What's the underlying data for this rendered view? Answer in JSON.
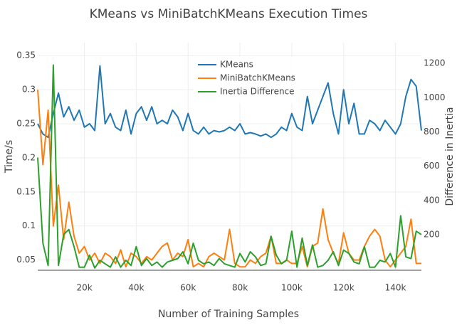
{
  "chart_data": {
    "type": "line",
    "title": "KMeans vs MiniBatchKMeans Execution Times",
    "x_label": "Number of Training Samples",
    "y_label": "Time/s",
    "y2_label": "Difference in Inertia",
    "x": [
      2000,
      4000,
      6000,
      8000,
      10000,
      12000,
      14000,
      16000,
      18000,
      20000,
      22000,
      24000,
      26000,
      28000,
      30000,
      32000,
      34000,
      36000,
      38000,
      40000,
      42000,
      44000,
      46000,
      48000,
      50000,
      52000,
      54000,
      56000,
      58000,
      60000,
      62000,
      64000,
      66000,
      68000,
      70000,
      72000,
      74000,
      76000,
      78000,
      80000,
      82000,
      84000,
      86000,
      88000,
      90000,
      92000,
      94000,
      96000,
      98000,
      100000,
      102000,
      104000,
      106000,
      108000,
      110000,
      112000,
      114000,
      116000,
      118000,
      120000,
      122000,
      124000,
      126000,
      128000,
      130000,
      132000,
      134000,
      136000,
      138000,
      140000,
      142000,
      144000,
      146000,
      148000,
      150000
    ],
    "series": [
      {
        "name": "KMeans",
        "color": "#1f77b4",
        "values": [
          0.25,
          0.235,
          0.23,
          0.265,
          0.295,
          0.26,
          0.275,
          0.255,
          0.27,
          0.245,
          0.25,
          0.24,
          0.335,
          0.25,
          0.265,
          0.245,
          0.24,
          0.27,
          0.235,
          0.265,
          0.275,
          0.255,
          0.275,
          0.25,
          0.255,
          0.25,
          0.27,
          0.26,
          0.24,
          0.265,
          0.24,
          0.235,
          0.245,
          0.235,
          0.24,
          0.238,
          0.24,
          0.245,
          0.24,
          0.25,
          0.235,
          0.237,
          0.235,
          0.232,
          0.235,
          0.23,
          0.235,
          0.245,
          0.24,
          0.265,
          0.245,
          0.24,
          0.29,
          0.25,
          0.27,
          0.29,
          0.31,
          0.265,
          0.235,
          0.3,
          0.25,
          0.28,
          0.235,
          0.235,
          0.255,
          0.25,
          0.24,
          0.255,
          0.245,
          0.235,
          0.25,
          0.29,
          0.315,
          0.305,
          0.24
        ]
      },
      {
        "name": "MiniBatchKMeans",
        "color": "#ff7f0e",
        "values": [
          0.3,
          0.19,
          0.27,
          0.1,
          0.16,
          0.08,
          0.135,
          0.085,
          0.06,
          0.07,
          0.05,
          0.06,
          0.045,
          0.06,
          0.055,
          0.045,
          0.065,
          0.04,
          0.06,
          0.055,
          0.045,
          0.055,
          0.05,
          0.06,
          0.07,
          0.075,
          0.05,
          0.06,
          0.055,
          0.08,
          0.04,
          0.045,
          0.04,
          0.055,
          0.06,
          0.055,
          0.05,
          0.095,
          0.045,
          0.04,
          0.04,
          0.05,
          0.045,
          0.055,
          0.06,
          0.085,
          0.045,
          0.045,
          0.05,
          0.045,
          0.045,
          0.07,
          0.04,
          0.07,
          0.075,
          0.125,
          0.08,
          0.06,
          0.045,
          0.09,
          0.06,
          0.05,
          0.05,
          0.07,
          0.085,
          0.095,
          0.085,
          0.05,
          0.04,
          0.05,
          0.06,
          0.07,
          0.11,
          0.045,
          0.045
        ]
      },
      {
        "name": "Inertia Difference",
        "color": "#2ca02c",
        "axis": "y2",
        "values": [
          650,
          150,
          20,
          1190,
          20,
          200,
          230,
          130,
          10,
          10,
          80,
          5,
          50,
          30,
          10,
          70,
          10,
          50,
          20,
          130,
          20,
          60,
          20,
          40,
          10,
          40,
          50,
          60,
          100,
          30,
          150,
          50,
          30,
          40,
          20,
          60,
          30,
          20,
          10,
          90,
          40,
          100,
          70,
          20,
          30,
          190,
          80,
          30,
          50,
          220,
          10,
          180,
          20,
          140,
          10,
          20,
          50,
          100,
          20,
          110,
          90,
          40,
          30,
          130,
          10,
          10,
          50,
          40,
          90,
          10,
          310,
          70,
          60,
          220,
          200
        ]
      }
    ],
    "xlim": [
      2000,
      150000
    ],
    "xticks": [
      {
        "value": 20000,
        "label": "20k"
      },
      {
        "value": 40000,
        "label": "40k"
      },
      {
        "value": 60000,
        "label": "60k"
      },
      {
        "value": 80000,
        "label": "80k"
      },
      {
        "value": 100000,
        "label": "100k"
      },
      {
        "value": 120000,
        "label": "120k"
      },
      {
        "value": 140000,
        "label": "140k"
      }
    ],
    "ylim": [
      0.035,
      0.369
    ],
    "yticks": [
      0.05,
      0.1,
      0.15,
      0.2,
      0.25,
      0.3,
      0.35
    ],
    "y2lim": [
      -8,
      1321
    ],
    "y2ticks": [
      200,
      400,
      600,
      800,
      1000,
      1200
    ],
    "grid": true,
    "legend": "top"
  }
}
